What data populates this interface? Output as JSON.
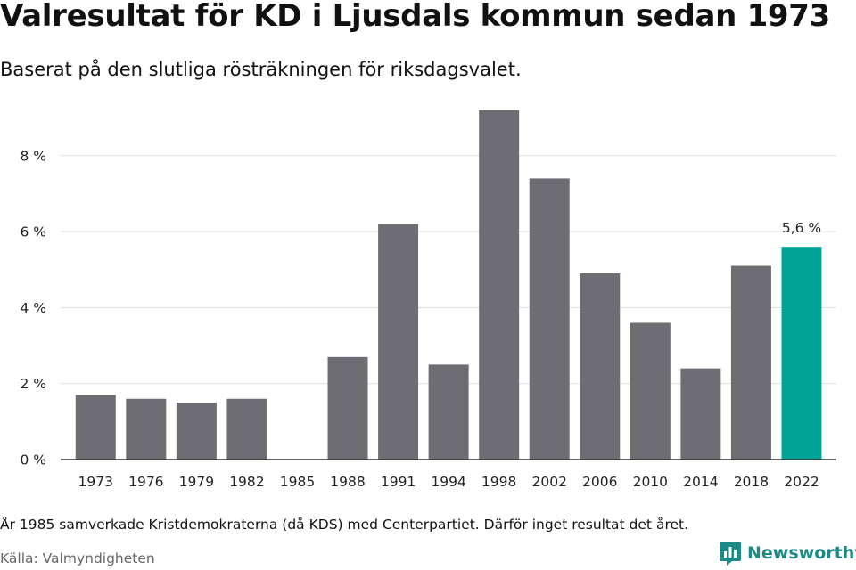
{
  "title": "Valresultat för KD i Ljusdals kommun sedan 1973",
  "subtitle": "Baserat på den slutliga rösträkningen för riksdagsvalet.",
  "note": "År 1985 samverkade Kristdemokraterna (då KDS) med Centerpartiet. Därför inget resultat det året.",
  "source": "Källa: Valmyndigheten",
  "brand": {
    "name": "Newsworthy",
    "icon": "newsworthy-logo-icon",
    "color": "#1e8a85"
  },
  "chart_data": {
    "type": "bar",
    "title": "Valresultat för KD i Ljusdals kommun sedan 1973",
    "subtitle": "Baserat på den slutliga rösträkningen för riksdagsvalet.",
    "categories": [
      "1973",
      "1976",
      "1979",
      "1982",
      "1985",
      "1988",
      "1991",
      "1994",
      "1998",
      "2002",
      "2006",
      "2010",
      "2014",
      "2018",
      "2022"
    ],
    "values": [
      1.7,
      1.6,
      1.5,
      1.6,
      null,
      2.7,
      6.2,
      2.5,
      9.2,
      7.4,
      4.9,
      3.6,
      2.4,
      5.1,
      5.6
    ],
    "ylim": [
      0,
      9.2
    ],
    "yticks": [
      0,
      2,
      4,
      6,
      8
    ],
    "ytick_labels": [
      "0 %",
      "2 %",
      "4 %",
      "6 %",
      "8 %"
    ],
    "grid": true,
    "colors": {
      "default": "#6e6d73",
      "highlight": "#00a597"
    },
    "highlight_index": 14,
    "data_labels": [
      {
        "index": 14,
        "text": "5,6 %"
      }
    ]
  }
}
